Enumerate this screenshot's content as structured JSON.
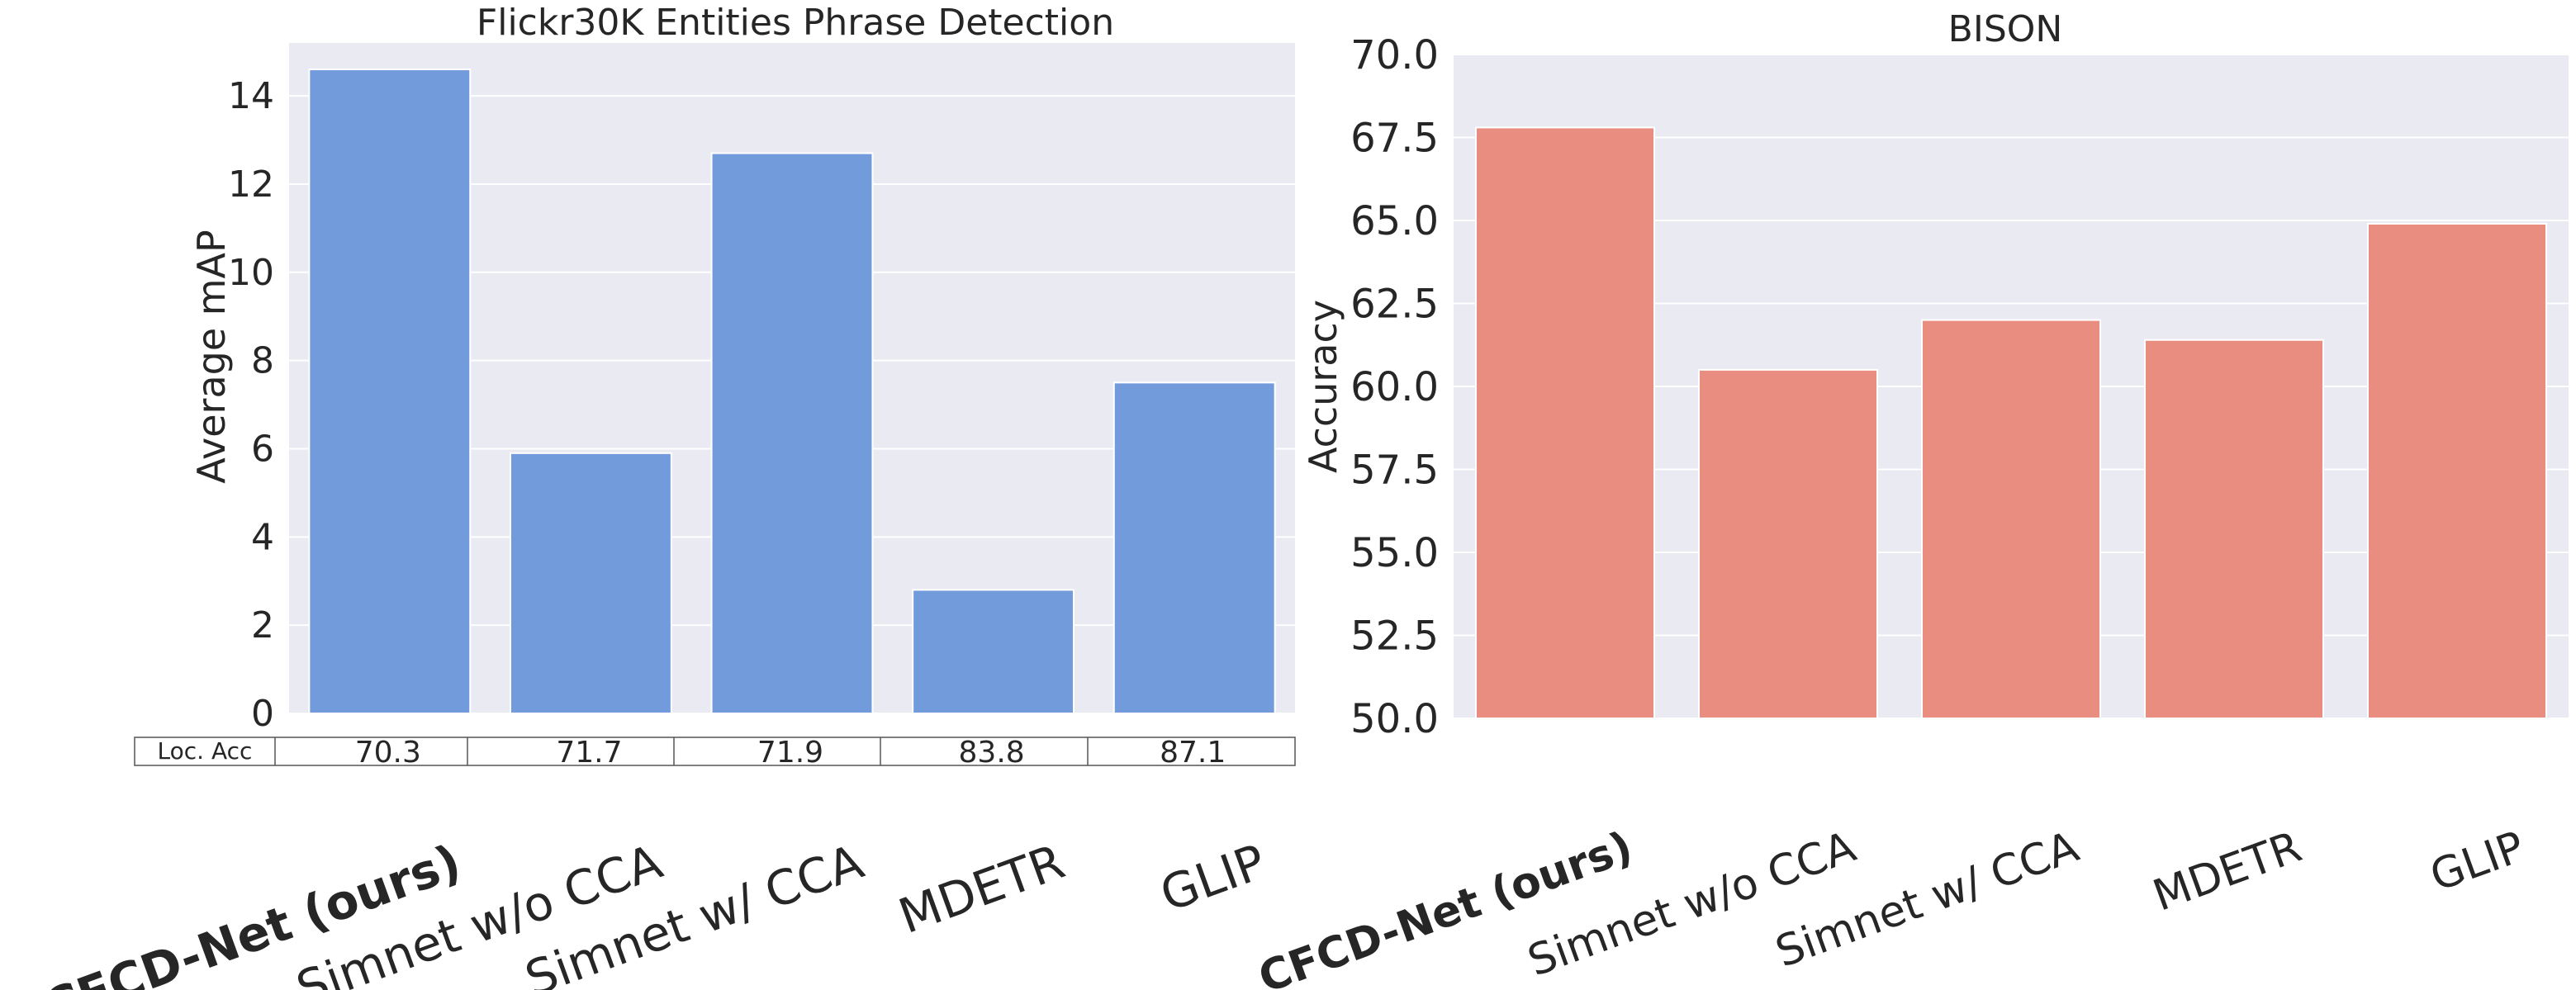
{
  "chart_data": [
    {
      "type": "bar",
      "title": "Flickr30K Entities Phrase Detection",
      "xlabel": "",
      "ylabel": "Average mAP",
      "categories": [
        "CFCD-Net (ours)",
        "Simnet w/o CCA",
        "Simnet w/ CCA",
        "MDETR",
        "GLIP"
      ],
      "bold_category": "CFCD-Net (ours)",
      "values": [
        14.6,
        5.9,
        12.7,
        2.8,
        7.5
      ],
      "ylim": [
        0,
        15.2
      ],
      "yticks": [
        0,
        2,
        4,
        6,
        8,
        10,
        12,
        14
      ],
      "grid": true,
      "color": "#729bdc",
      "table": {
        "row_label": "Loc. Acc",
        "values": [
          "70.3",
          "71.7",
          "71.9",
          "83.8",
          "87.1"
        ]
      }
    },
    {
      "type": "bar",
      "title": "BISON",
      "xlabel": "",
      "ylabel": "Accuracy",
      "categories": [
        "CFCD-Net (ours)",
        "Simnet w/o CCA",
        "Simnet w/ CCA",
        "MDETR",
        "GLIP"
      ],
      "bold_category": "CFCD-Net (ours)",
      "values": [
        67.8,
        60.5,
        62.0,
        61.4,
        64.9
      ],
      "ylim": [
        50,
        70
      ],
      "yticks": [
        50.0,
        52.5,
        55.0,
        57.5,
        60.0,
        62.5,
        65.0,
        67.5,
        70.0
      ],
      "ytick_labels": [
        "50.0",
        "52.5",
        "55.0",
        "57.5",
        "60.0",
        "62.5",
        "65.0",
        "67.5",
        "70.0"
      ],
      "grid": true,
      "color": "#e88d80"
    }
  ]
}
